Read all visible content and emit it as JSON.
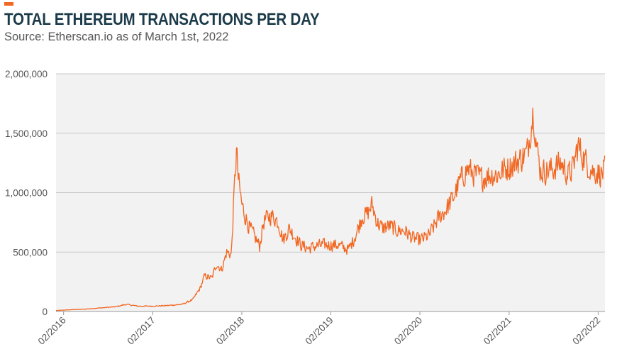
{
  "header": {
    "title": "TOTAL ETHEREUM TRANSACTIONS PER DAY",
    "subtitle": "Source: Etherscan.io as of March 1st, 2022"
  },
  "colors": {
    "line": "#f26722",
    "plot_bg": "#f2f2f2",
    "grid": "#c8c8c8",
    "title": "#1c3b4a",
    "accent": "#f26722"
  },
  "chart_data": {
    "type": "line",
    "title": "TOTAL ETHEREUM TRANSACTIONS PER DAY",
    "subtitle": "Source: Etherscan.io as of March 1st, 2022",
    "xlabel": "",
    "ylabel": "",
    "ylim": [
      0,
      2000000
    ],
    "xlim": [
      "2016-01-01",
      "2022-03-01"
    ],
    "grid": true,
    "y_ticks": [
      0,
      500000,
      1000000,
      1500000,
      2000000
    ],
    "y_tick_labels": [
      "0",
      "500,000",
      "1,000,000",
      "1,500,000",
      "2,000,000"
    ],
    "x_ticks": [
      "2016-02",
      "2017-02",
      "2018-02",
      "2019-02",
      "2020-02",
      "2021-02",
      "2022-02"
    ],
    "x_tick_labels": [
      "02/2016",
      "02/2017",
      "02/2018",
      "02/2019",
      "02/2020",
      "02/2021",
      "02/2022"
    ],
    "series": [
      {
        "values": [
          [
            "2016-01-01",
            8000
          ],
          [
            "2016-03-01",
            15000
          ],
          [
            "2016-05-01",
            20000
          ],
          [
            "2016-07-01",
            30000
          ],
          [
            "2016-09-01",
            40000
          ],
          [
            "2016-10-15",
            60000
          ],
          [
            "2016-12-01",
            45000
          ],
          [
            "2017-02-01",
            45000
          ],
          [
            "2017-04-01",
            50000
          ],
          [
            "2017-06-01",
            60000
          ],
          [
            "2017-07-15",
            100000
          ],
          [
            "2017-08-15",
            200000
          ],
          [
            "2017-09-01",
            300000
          ],
          [
            "2017-10-01",
            280000
          ],
          [
            "2017-10-20",
            400000
          ],
          [
            "2017-11-10",
            350000
          ],
          [
            "2017-12-01",
            500000
          ],
          [
            "2017-12-20",
            480000
          ],
          [
            "2018-01-04",
            1150000
          ],
          [
            "2018-01-10",
            1350000
          ],
          [
            "2018-01-18",
            1100000
          ],
          [
            "2018-02-01",
            900000
          ],
          [
            "2018-02-15",
            800000
          ],
          [
            "2018-03-01",
            720000
          ],
          [
            "2018-03-20",
            650000
          ],
          [
            "2018-04-15",
            550000
          ],
          [
            "2018-05-01",
            750000
          ],
          [
            "2018-05-20",
            800000
          ],
          [
            "2018-06-10",
            800000
          ],
          [
            "2018-07-01",
            750000
          ],
          [
            "2018-07-20",
            600000
          ],
          [
            "2018-08-15",
            700000
          ],
          [
            "2018-09-10",
            620000
          ],
          [
            "2018-10-01",
            560000
          ],
          [
            "2018-11-01",
            530000
          ],
          [
            "2018-12-01",
            550000
          ],
          [
            "2019-01-01",
            560000
          ],
          [
            "2019-02-01",
            560000
          ],
          [
            "2019-03-01",
            560000
          ],
          [
            "2019-04-15",
            520000
          ],
          [
            "2019-05-15",
            650000
          ],
          [
            "2019-06-10",
            800000
          ],
          [
            "2019-07-01",
            820000
          ],
          [
            "2019-07-20",
            900000
          ],
          [
            "2019-08-10",
            750000
          ],
          [
            "2019-09-01",
            700000
          ],
          [
            "2019-10-01",
            720000
          ],
          [
            "2019-11-01",
            680000
          ],
          [
            "2019-12-01",
            680000
          ],
          [
            "2020-01-01",
            620000
          ],
          [
            "2020-02-01",
            600000
          ],
          [
            "2020-03-10",
            640000
          ],
          [
            "2020-04-15",
            780000
          ],
          [
            "2020-05-15",
            850000
          ],
          [
            "2020-06-15",
            950000
          ],
          [
            "2020-07-15",
            1100000
          ],
          [
            "2020-08-15",
            1200000
          ],
          [
            "2020-09-15",
            1150000
          ],
          [
            "2020-10-15",
            1120000
          ],
          [
            "2020-11-15",
            1150000
          ],
          [
            "2020-12-15",
            1150000
          ],
          [
            "2021-01-15",
            1200000
          ],
          [
            "2021-02-15",
            1230000
          ],
          [
            "2021-03-15",
            1280000
          ],
          [
            "2021-04-15",
            1330000
          ],
          [
            "2021-05-01",
            1550000
          ],
          [
            "2021-05-12",
            1700000
          ],
          [
            "2021-05-25",
            1380000
          ],
          [
            "2021-06-10",
            1180000
          ],
          [
            "2021-07-01",
            1180000
          ],
          [
            "2021-08-01",
            1200000
          ],
          [
            "2021-09-01",
            1250000
          ],
          [
            "2021-10-01",
            1150000
          ],
          [
            "2021-10-20",
            1200000
          ],
          [
            "2021-11-10",
            1400000
          ],
          [
            "2021-11-25",
            1330000
          ],
          [
            "2021-12-15",
            1250000
          ],
          [
            "2022-01-10",
            1180000
          ],
          [
            "2022-02-01",
            1170000
          ],
          [
            "2022-02-15",
            1150000
          ],
          [
            "2022-03-01",
            1200000
          ]
        ]
      }
    ]
  }
}
